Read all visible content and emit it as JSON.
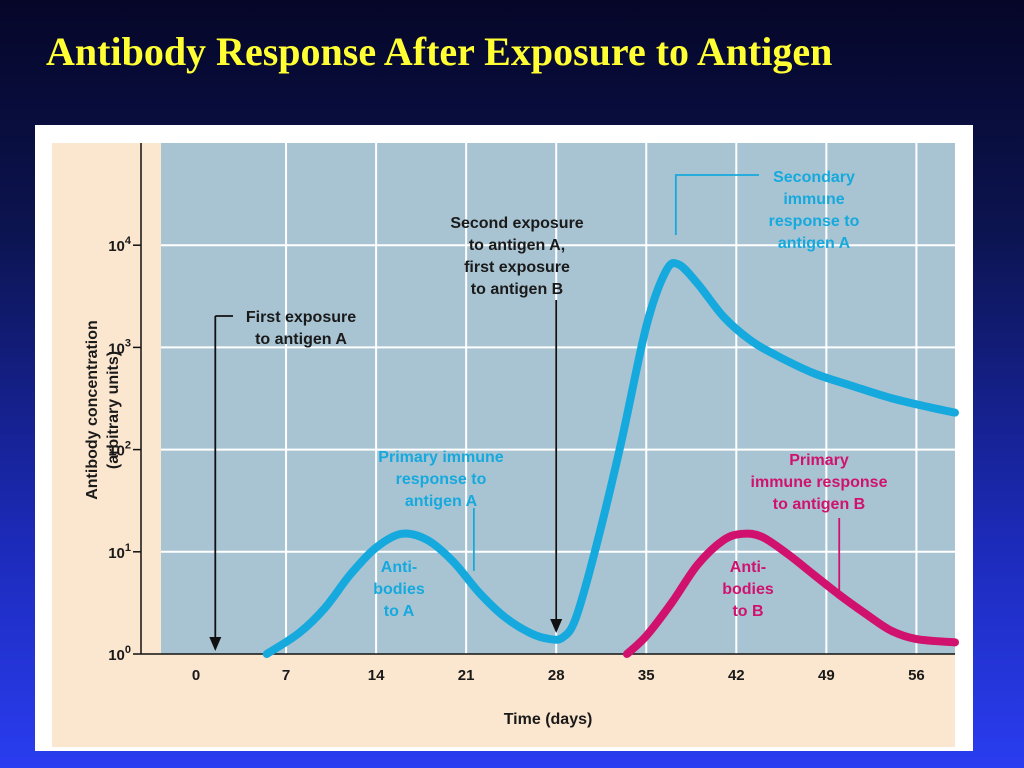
{
  "slide": {
    "title": "Antibody Response After Exposure to Antigen"
  },
  "colors": {
    "background_top": "#050628",
    "background_bottom": "#2a3df0",
    "title": "#ffff33",
    "panel": "#ffffff",
    "outer_plot": "#fbe6cf",
    "plot_area": "#a8c4d3",
    "grid": "#ffffff",
    "antibodies_a": "#16a9dd",
    "antibodies_b": "#d0126e",
    "text": "#1a1a1a"
  },
  "chart_data": {
    "type": "line",
    "xlabel": "Time (days)",
    "ylabel": [
      "Antibody concentration",
      "(arbitrary units)"
    ],
    "x_ticks": [
      0,
      7,
      14,
      21,
      28,
      35,
      42,
      49,
      56
    ],
    "xlim": [
      0,
      59
    ],
    "y_scale": "log",
    "ylim": [
      1,
      100000
    ],
    "y_ticks": [
      {
        "value": 1,
        "base": "10",
        "exp": "0"
      },
      {
        "value": 10,
        "base": "10",
        "exp": "1"
      },
      {
        "value": 100,
        "base": "10",
        "exp": "2"
      },
      {
        "value": 1000,
        "base": "10",
        "exp": "3"
      },
      {
        "value": 10000,
        "base": "10",
        "exp": "4"
      }
    ],
    "grid": true,
    "series": [
      {
        "color": "#16a9dd",
        "points": [
          [
            5.5,
            1.0
          ],
          [
            8,
            1.6
          ],
          [
            10,
            2.8
          ],
          [
            12,
            6.0
          ],
          [
            14,
            11.0
          ],
          [
            16,
            15.0
          ],
          [
            18,
            13.0
          ],
          [
            20,
            8.0
          ],
          [
            22,
            4.0
          ],
          [
            24,
            2.3
          ],
          [
            26,
            1.6
          ],
          [
            27.5,
            1.4
          ],
          [
            28.5,
            1.45
          ],
          [
            29.5,
            2.2
          ],
          [
            31,
            10
          ],
          [
            33,
            110
          ],
          [
            35,
            1600
          ],
          [
            36.5,
            5500
          ],
          [
            37.5,
            6500
          ],
          [
            39,
            4200
          ],
          [
            41,
            2000
          ],
          [
            43,
            1200
          ],
          [
            45,
            850
          ],
          [
            48,
            560
          ],
          [
            51,
            420
          ],
          [
            54,
            320
          ],
          [
            57,
            260
          ],
          [
            59,
            230
          ]
        ]
      },
      {
        "color": "#d0126e",
        "points": [
          [
            33.5,
            1.0
          ],
          [
            35,
            1.5
          ],
          [
            37,
            3.2
          ],
          [
            39,
            7.5
          ],
          [
            41,
            13.0
          ],
          [
            42.5,
            15.0
          ],
          [
            44,
            14.0
          ],
          [
            46,
            9.5
          ],
          [
            48,
            6.0
          ],
          [
            50,
            3.8
          ],
          [
            52,
            2.5
          ],
          [
            54,
            1.7
          ],
          [
            56,
            1.4
          ],
          [
            59,
            1.3
          ]
        ]
      }
    ],
    "annotations": [
      {
        "lines": [
          "First exposure",
          "to antigen A"
        ],
        "x": 1.5
      },
      {
        "lines": [
          "Second exposure",
          "to antigen A,",
          "first exposure",
          "to antigen B"
        ],
        "x": 28
      },
      {
        "lines": [
          "Secondary",
          "immune",
          "response to",
          "antigen A"
        ],
        "color": "#16a9dd"
      },
      {
        "lines": [
          "Primary immune",
          "response to",
          "antigen A"
        ],
        "color": "#16a9dd"
      },
      {
        "lines": [
          "Anti-",
          "bodies",
          "to A"
        ],
        "color": "#16a9dd"
      },
      {
        "lines": [
          "Primary",
          "immune response",
          "to antigen B"
        ],
        "color": "#d0126e"
      },
      {
        "lines": [
          "Anti-",
          "bodies",
          "to B"
        ],
        "color": "#d0126e"
      }
    ]
  }
}
